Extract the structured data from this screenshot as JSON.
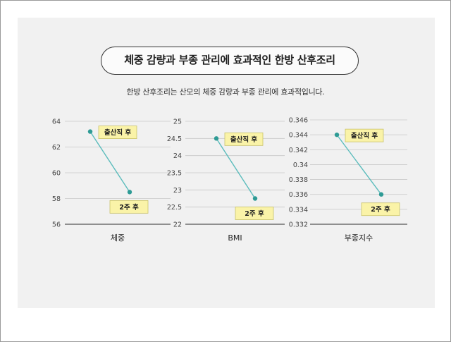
{
  "header": {
    "title": "체중 감량과 부종 관리에 효과적인 한방 산후조리",
    "subtitle": "한방 산후조리는 산모의 체중 감량과 부종 관리에 효과적입니다."
  },
  "colors": {
    "line": "#5bbcbc",
    "point": "#2e9b95",
    "label_bg": "#faf3a8",
    "label_border": "#c9c26a",
    "grid": "#c8c8c8"
  },
  "chart_data": [
    {
      "type": "line",
      "xlabel": "체중",
      "ylim": [
        56,
        64
      ],
      "yticks": [
        "56",
        "58",
        "60",
        "62",
        "64"
      ],
      "categories": [
        "출산직 후",
        "2주 후"
      ],
      "values": [
        63.2,
        58.5
      ]
    },
    {
      "type": "line",
      "xlabel": "BMI",
      "ylim": [
        22,
        25
      ],
      "yticks": [
        "22",
        "22.5",
        "23",
        "23.5",
        "24",
        "24.5",
        "25"
      ],
      "categories": [
        "출산직 후",
        "2주 후"
      ],
      "values": [
        24.5,
        22.75
      ]
    },
    {
      "type": "line",
      "xlabel": "부종지수",
      "ylim": [
        0.332,
        0.346
      ],
      "yticks": [
        "0.332",
        "0.334",
        "0.336",
        "0.338",
        "0.34",
        "0.342",
        "0.344",
        "0.346"
      ],
      "categories": [
        "출산직 후",
        "2주 후"
      ],
      "values": [
        0.344,
        0.336
      ]
    }
  ]
}
